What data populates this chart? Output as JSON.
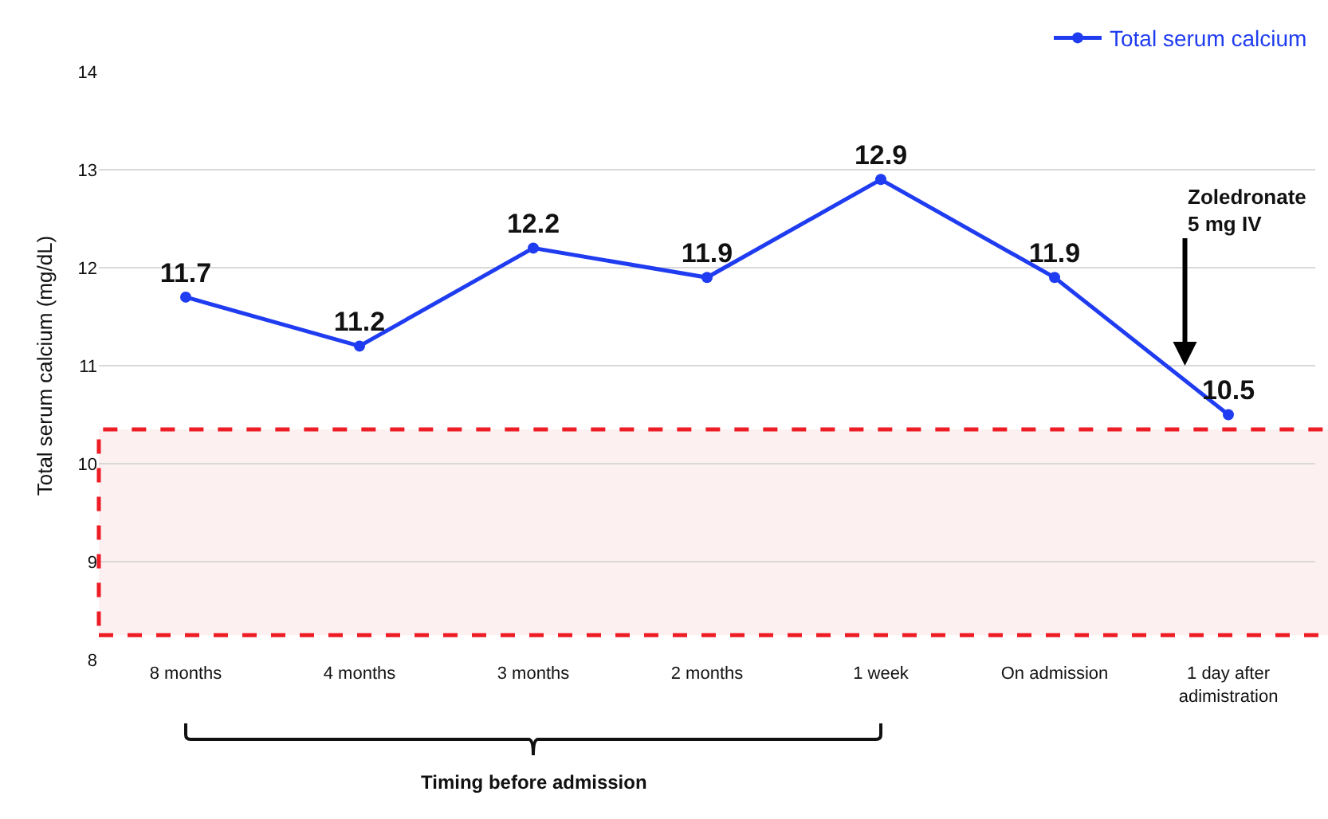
{
  "chart_data": {
    "type": "line",
    "ylabel": "Total serum calcium (mg/dL)",
    "categories": [
      "8 months",
      "4 months",
      "3 months",
      "2 months",
      "1 week",
      "On admission",
      "1 day after adimistration"
    ],
    "series": [
      {
        "name": "Total serum calcium",
        "color": "#1f3cf0",
        "values": [
          11.7,
          11.2,
          12.2,
          11.9,
          12.9,
          11.9,
          10.5
        ]
      }
    ],
    "ylim": [
      8,
      14
    ],
    "yticks": [
      8,
      9,
      10,
      11,
      12,
      13,
      14
    ],
    "grid": "y",
    "legend": "top right",
    "marker": "circle",
    "line_style": "solid",
    "data_labels": true,
    "bands": [
      {
        "axis": "y",
        "from": 8.25,
        "to": 10.35,
        "color": "#ee1c25"
      }
    ],
    "annotations": [
      "Zoledronate\n5 mg IV",
      "Timing before admission"
    ]
  }
}
